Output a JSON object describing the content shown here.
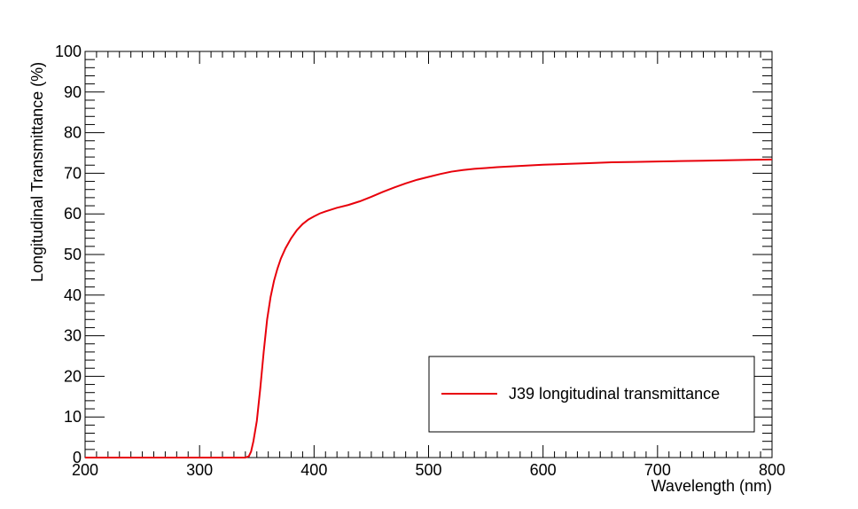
{
  "chart_data": {
    "type": "line",
    "title": "",
    "xlabel": "Wavelength (nm)",
    "ylabel": "Longitudinal Transmittance (%)",
    "xlim": [
      200,
      800
    ],
    "ylim": [
      0,
      100
    ],
    "x_ticks": [
      "200",
      "300",
      "400",
      "500",
      "600",
      "700",
      "800"
    ],
    "y_ticks": [
      "0",
      "10",
      "20",
      "30",
      "40",
      "50",
      "60",
      "70",
      "80",
      "90",
      "100"
    ],
    "grid": false,
    "legend_position": "bottom-right",
    "series": [
      {
        "name": "J39 longitudinal transmittance",
        "color": "#e8000b",
        "x": [
          200,
          300,
          340,
          343,
          345,
          347,
          350,
          353,
          356,
          359,
          362,
          365,
          368,
          371,
          375,
          380,
          385,
          390,
          395,
          400,
          405,
          410,
          420,
          430,
          440,
          450,
          460,
          470,
          480,
          490,
          500,
          510,
          520,
          530,
          540,
          550,
          560,
          580,
          600,
          620,
          640,
          660,
          680,
          700,
          720,
          740,
          760,
          780,
          800
        ],
        "y": [
          0,
          0,
          0,
          0.3,
          1.5,
          4,
          9,
          17,
          26,
          34,
          39.5,
          43.5,
          46.5,
          49,
          51.5,
          54,
          56,
          57.5,
          58.6,
          59.4,
          60.1,
          60.6,
          61.5,
          62.2,
          63.1,
          64.2,
          65.4,
          66.5,
          67.5,
          68.4,
          69.1,
          69.8,
          70.4,
          70.8,
          71.1,
          71.3,
          71.5,
          71.8,
          72.1,
          72.3,
          72.5,
          72.7,
          72.8,
          72.9,
          73.0,
          73.1,
          73.2,
          73.3,
          73.4
        ]
      }
    ]
  }
}
